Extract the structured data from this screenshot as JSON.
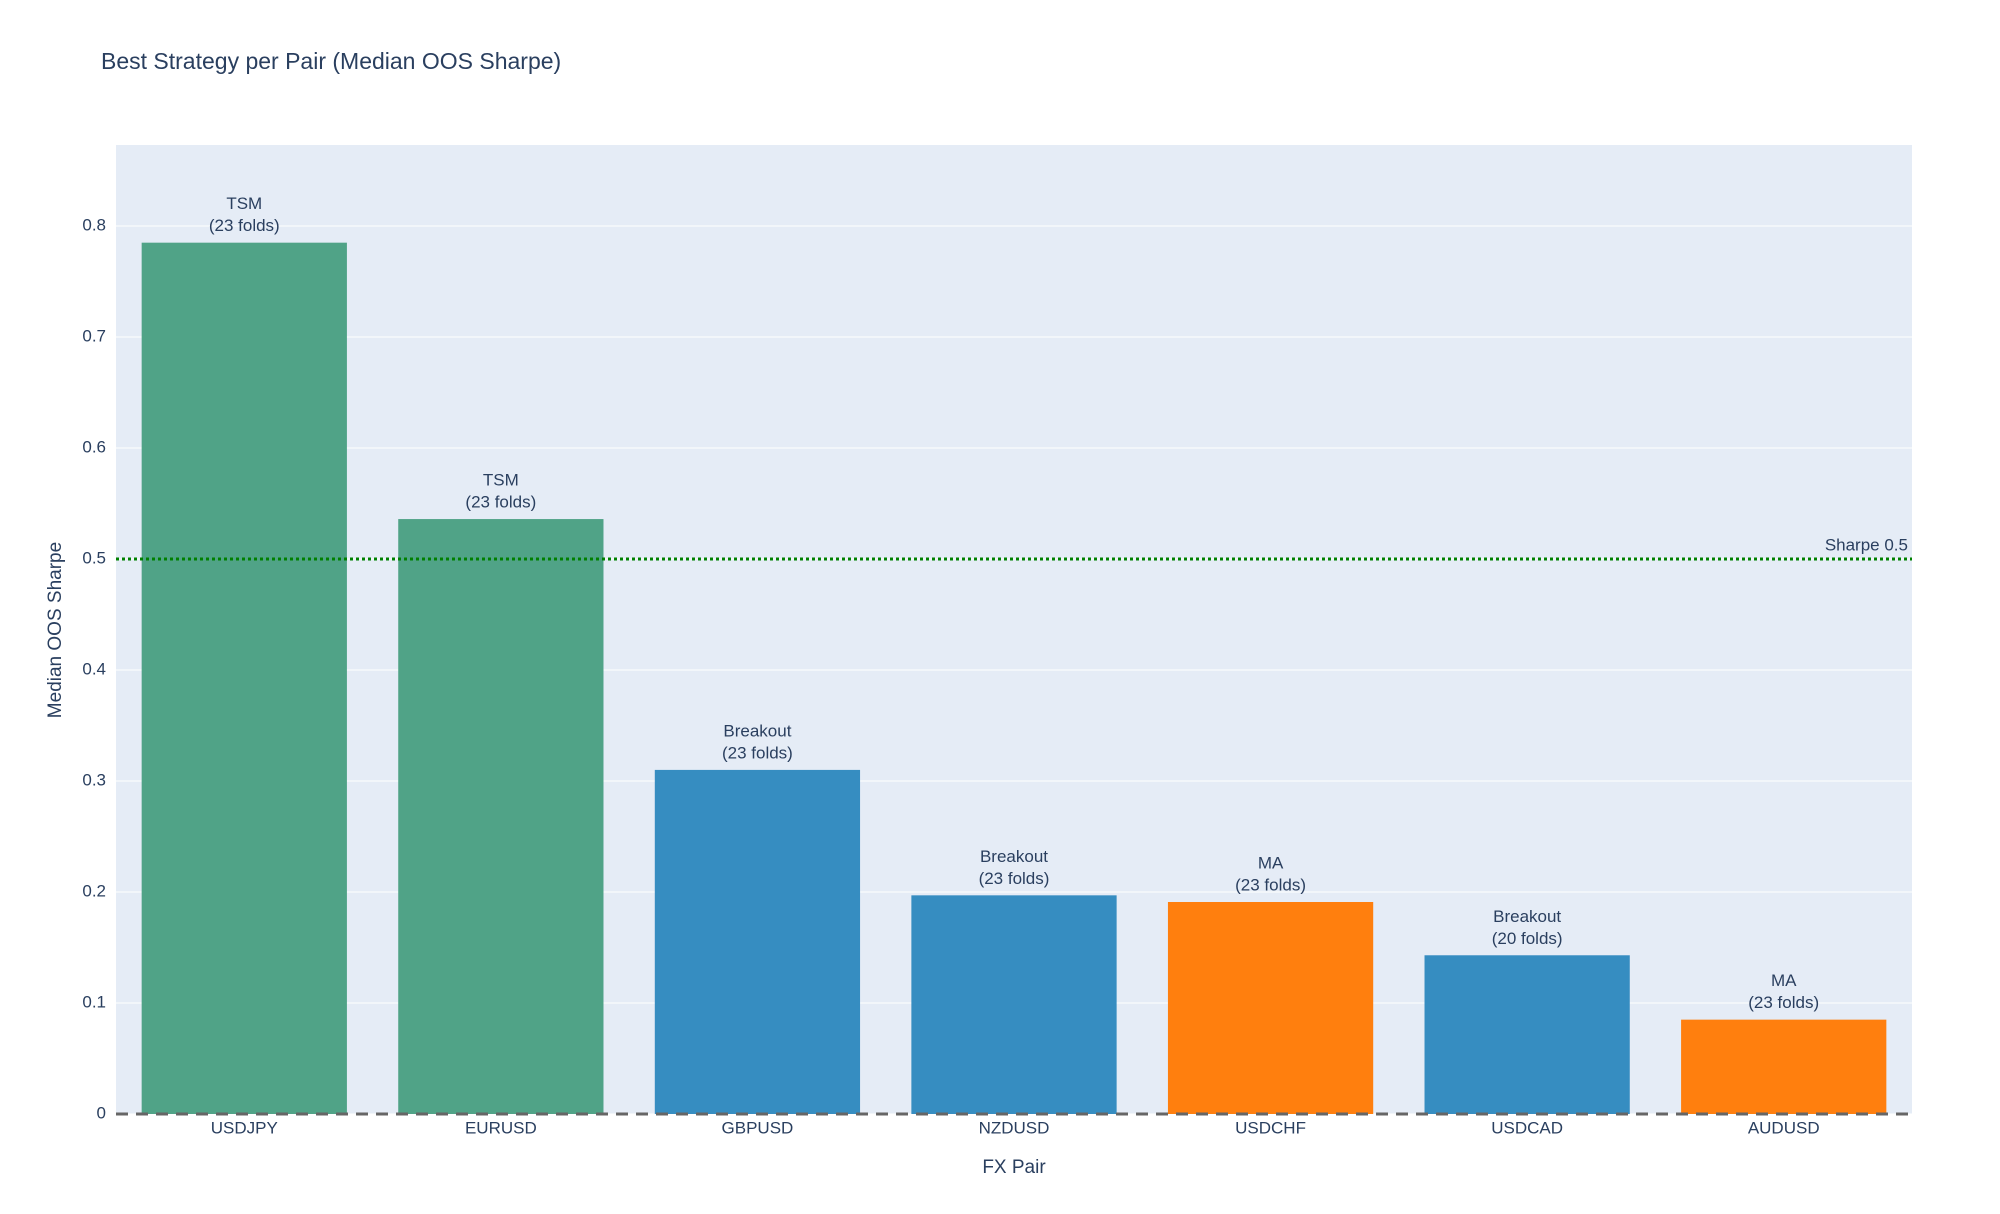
{
  "chart_data": {
    "type": "bar",
    "title": "Best Strategy per Pair (Median OOS Sharpe)",
    "x_label": "FX Pair",
    "y_label": "Median OOS Sharpe",
    "categories": [
      "USDJPY",
      "EURUSD",
      "GBPUSD",
      "NZDUSD",
      "USDCHF",
      "USDCAD",
      "AUDUSD"
    ],
    "values": [
      0.785,
      0.536,
      0.31,
      0.197,
      0.191,
      0.143,
      0.085
    ],
    "colors": [
      "#50a387",
      "#50a387",
      "#368dc1",
      "#368dc1",
      "#ff7f0e",
      "#368dc1",
      "#ff7f0e"
    ],
    "bar_annotations": [
      [
        "TSM",
        "(23 folds)"
      ],
      [
        "TSM",
        "(23 folds)"
      ],
      [
        "Breakout",
        "(23 folds)"
      ],
      [
        "Breakout",
        "(23 folds)"
      ],
      [
        "MA",
        "(23 folds)"
      ],
      [
        "Breakout",
        "(20 folds)"
      ],
      [
        "MA",
        "(23 folds)"
      ]
    ],
    "ylim": [
      0,
      0.873
    ],
    "yticks": [
      0,
      0.1,
      0.2,
      0.3,
      0.4,
      0.5,
      0.6,
      0.7,
      0.8
    ],
    "grid": true,
    "reference_line": {
      "value": 0.5,
      "label": "Sharpe 0.5",
      "color": "green"
    },
    "zero_line": {
      "value": 0,
      "color": "#666666"
    }
  }
}
